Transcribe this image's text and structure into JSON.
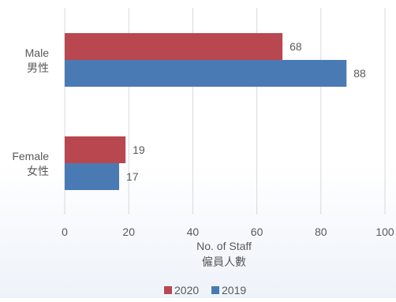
{
  "chart_data": {
    "type": "bar",
    "orientation": "horizontal",
    "categories": [
      {
        "name": "Male",
        "name_zh": "男性"
      },
      {
        "name": "Female",
        "name_zh": "女性"
      }
    ],
    "series": [
      {
        "name": "2020",
        "color": "#b9474f",
        "values": [
          68,
          19
        ]
      },
      {
        "name": "2019",
        "color": "#4a7ab3",
        "values": [
          88,
          17
        ]
      }
    ],
    "xlabel": "No. of Staff",
    "xlabel_zh": "僱員人數",
    "xlim": [
      0,
      100
    ],
    "xticks": [
      0,
      20,
      40,
      60,
      80,
      100
    ],
    "grid": true,
    "legend_position": "bottom"
  }
}
